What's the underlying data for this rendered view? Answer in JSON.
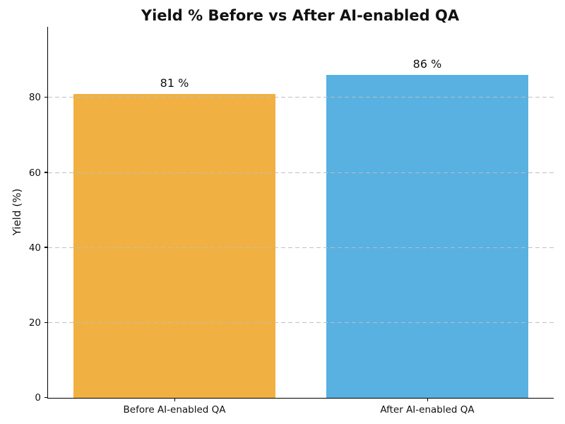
{
  "chart_data": {
    "type": "bar",
    "title": "Yield % Before vs After AI-enabled QA",
    "ylabel": "Yield (%)",
    "xlabel": "",
    "categories": [
      "Before AI-enabled QA",
      "After AI-enabled QA"
    ],
    "values": [
      81,
      86
    ],
    "value_labels": [
      "81 %",
      "86 %"
    ],
    "bar_colors": [
      "#F0B142",
      "#58B1E1"
    ],
    "bar_width_fraction": 0.8,
    "ylim": [
      0,
      98.9
    ],
    "yticks": [
      0,
      20,
      40,
      60,
      80
    ],
    "gridline_values": [
      20,
      40,
      60,
      80
    ],
    "grid": "horizontal dashed",
    "legend": "none",
    "colors": {
      "text": "#111111",
      "gridline": "#c4c4c4",
      "spine": "#000000",
      "background": "#ffffff"
    }
  }
}
